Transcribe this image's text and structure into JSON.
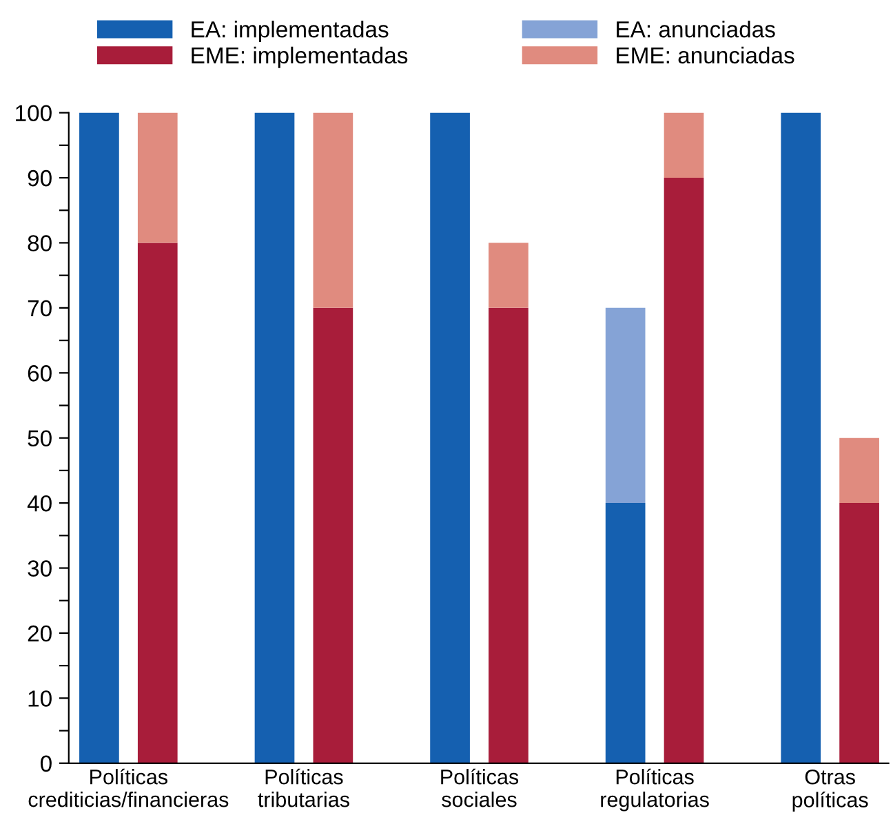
{
  "chart_data": {
    "type": "bar",
    "stacked": true,
    "categories": [
      "Políticas\ncrediticias/financieras",
      null,
      null,
      "Políticas\ntributarias",
      null,
      null,
      "Políticas\nsociales",
      null,
      null,
      "Políticas\nregulatorias",
      null,
      null,
      "Otras\npolíticas",
      null
    ],
    "series": [
      {
        "name": "EA: implementadas",
        "color": "#1560b0",
        "values": [
          100,
          null,
          null,
          100,
          null,
          null,
          100,
          null,
          null,
          40,
          null,
          null,
          100,
          null
        ]
      },
      {
        "name": "EME: implementadas",
        "color": "#a81d3a",
        "values": [
          null,
          80,
          null,
          null,
          70,
          null,
          null,
          70,
          null,
          null,
          90,
          null,
          null,
          40
        ]
      },
      {
        "name": "EA: anunciadas",
        "color": "#85a3d6",
        "values": [
          null,
          null,
          null,
          null,
          null,
          null,
          null,
          null,
          null,
          30,
          null,
          null,
          null,
          null
        ]
      },
      {
        "name": "EME: anunciadas",
        "color": "#e08b7f",
        "values": [
          null,
          20,
          null,
          null,
          30,
          null,
          null,
          10,
          null,
          null,
          10,
          null,
          null,
          10
        ]
      }
    ],
    "ylim": [
      0,
      100
    ],
    "yticks": [
      0,
      {
        "value": 5,
        "label": null
      },
      10,
      {
        "value": 15,
        "label": null
      },
      20,
      {
        "value": 25,
        "label": null
      },
      30,
      {
        "value": 35,
        "label": null
      },
      40,
      {
        "value": 45,
        "label": null
      },
      50,
      {
        "value": 55,
        "label": null
      },
      60,
      {
        "value": 65,
        "label": null
      },
      70,
      {
        "value": 75,
        "label": null
      },
      80,
      {
        "value": 85,
        "label": null
      },
      90,
      {
        "value": 95,
        "label": null
      },
      100
    ],
    "legend": "top"
  }
}
